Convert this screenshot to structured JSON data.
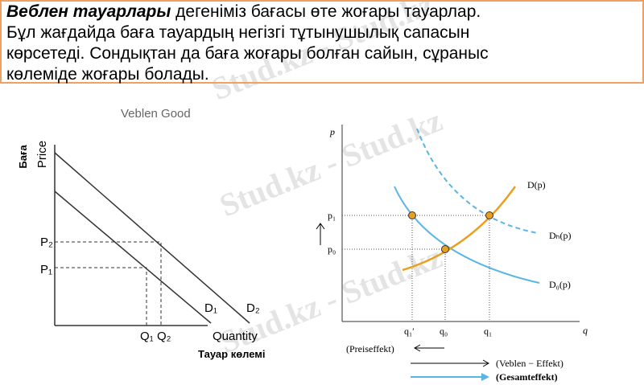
{
  "definition": {
    "term": "Веблен тауарлары",
    "lines": [
      "дегеніміз бағасы өте жоғары тауарлар.",
      "Бұл жағдайда баға тауардың негізгі тұтынушылық сапасын",
      "көрсетеді. Сондықтан да баға жоғары болған сайын, сұраныс",
      "көлеміде жоғары болады."
    ]
  },
  "watermark": "Stud.kz - Stud.kz",
  "left_diagram": {
    "title": "Veblen Good",
    "y_label_kz": "Баға",
    "y_label": "Price",
    "x_label": "Quantity",
    "x_label_kz": "Тауар көлемі",
    "labels": {
      "p2": "P₂",
      "p1": "P₁",
      "q1": "Q₁",
      "q2": "Q₂",
      "d1": "D₁",
      "d2": "D₂"
    }
  },
  "right_diagram": {
    "y_label": "p",
    "x_label": "q",
    "p1": "p₁",
    "p0": "p₀",
    "q1_prime": "q₁′",
    "q0": "q₀",
    "q1": "q₁",
    "curves": {
      "d": "D(p)",
      "dh": "Dₕ(p)",
      "d0": "D₀(p)"
    },
    "legend": {
      "price_effect": "(Preiseffekt)",
      "veblen_effect": "(Veblen − Effekt)",
      "total_effect": "(Gesamteffekt)"
    }
  }
}
